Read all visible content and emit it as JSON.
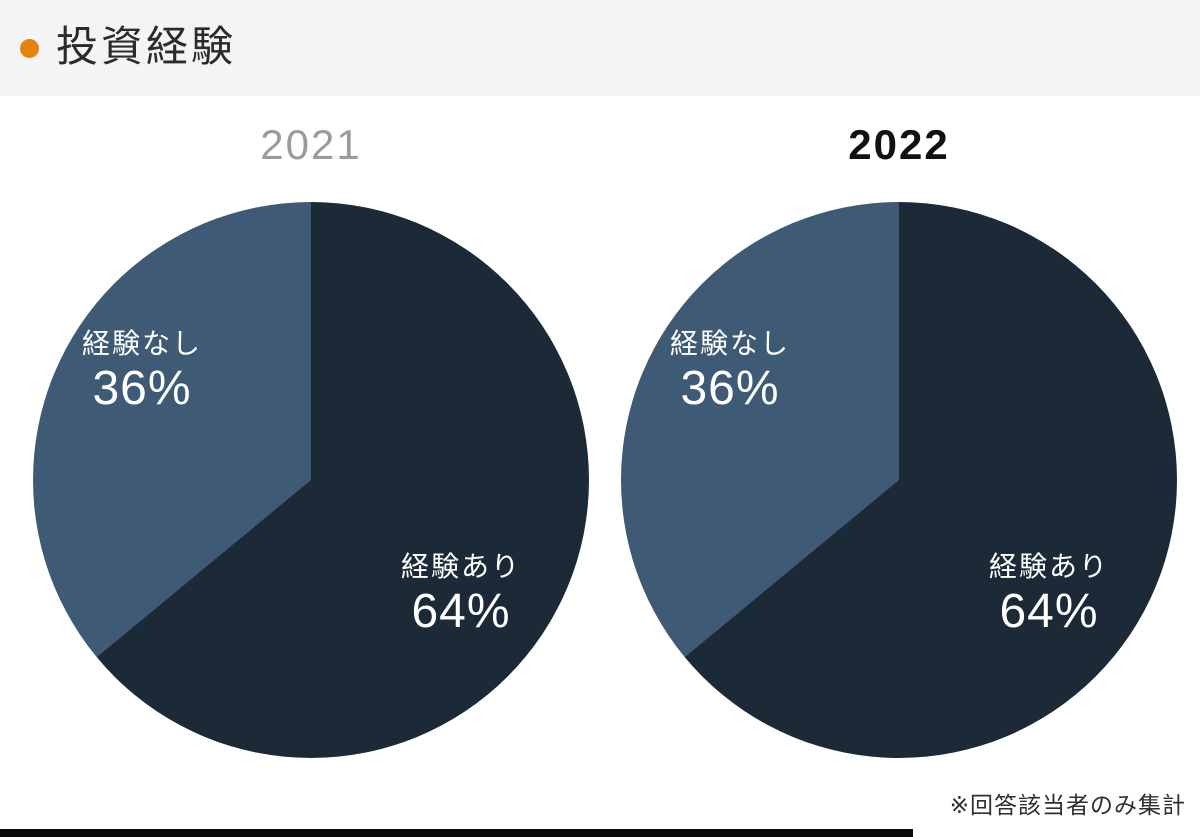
{
  "header": {
    "title": "投資経験",
    "bullet_color": "#e8820e"
  },
  "footnote": "※回答該当者のみ集計",
  "colors": {
    "header_bg": "#f5f4f4",
    "content_bg": "#ffffff",
    "slice_experienced": "#1c2a38",
    "slice_not_experienced": "#3e5a74",
    "title_2021": "#9b9b9b",
    "title_2022": "#111111",
    "label_text": "#ffffff",
    "bottom_bar": "#0d0d0d"
  },
  "chart_data": [
    {
      "type": "pie",
      "title": "2021",
      "title_color": "#9b9b9b",
      "start_angle_deg": 0,
      "direction": "clockwise",
      "labels_position": "inside",
      "legend": "none",
      "slices": [
        {
          "label": "経験あり",
          "value": 64,
          "pct": "64%",
          "color": "#1c2a38"
        },
        {
          "label": "経験なし",
          "value": 36,
          "pct": "36%",
          "color": "#3e5a74"
        }
      ]
    },
    {
      "type": "pie",
      "title": "2022",
      "title_color": "#111111",
      "start_angle_deg": 0,
      "direction": "clockwise",
      "labels_position": "inside",
      "legend": "none",
      "slices": [
        {
          "label": "経験あり",
          "value": 64,
          "pct": "64%",
          "color": "#1c2a38"
        },
        {
          "label": "経験なし",
          "value": 36,
          "pct": "36%",
          "color": "#3e5a74"
        }
      ]
    }
  ]
}
